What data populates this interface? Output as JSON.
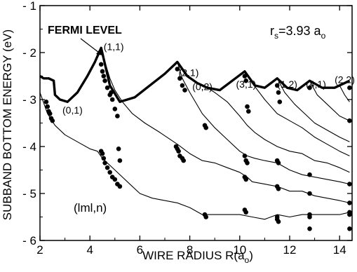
{
  "chart_data": {
    "type": "line",
    "xlabel": "WIRE RADIUS R(a",
    "xlabel_sub": "o",
    "xlabel_close": ")",
    "ylabel": "SUBBAND BOTTOM ENERGY (eV)",
    "xlim": [
      2,
      14.5
    ],
    "ylim": [
      -6,
      -1
    ],
    "x_ticks": [
      2,
      4,
      6,
      8,
      10,
      12,
      14
    ],
    "x_tick_labels": [
      "2",
      "4",
      "6",
      "8",
      "10",
      "12",
      "14"
    ],
    "y_ticks": [
      -1,
      -2,
      -3,
      -4,
      -5,
      -6
    ],
    "y_tick_labels": [
      "- 1",
      "- 2",
      "- 3",
      "- 4",
      "- 5",
      "- 6"
    ],
    "grid": false,
    "fermi_label": "FERMI LEVEL",
    "rs_label": {
      "main": "r",
      "sub1": "s",
      "mid": "=3.93 a",
      "sub2": "o"
    },
    "legend_note": "(lml,n)",
    "subband_labels": [
      {
        "text": "(0,1)",
        "x": 2.9,
        "y": -3.3
      },
      {
        "text": "(1,1)",
        "x": 4.55,
        "y": -1.95
      },
      {
        "text": "(2,1)",
        "x": 7.55,
        "y": -2.5
      },
      {
        "text": "(0,2)",
        "x": 8.1,
        "y": -2.8
      },
      {
        "text": "(3,1)",
        "x": 9.85,
        "y": -2.75
      },
      {
        "text": "(1,2)",
        "x": 11.5,
        "y": -2.75
      },
      {
        "text": "(4,1)",
        "x": 12.65,
        "y": -2.75
      },
      {
        "text": "(2,2)",
        "x": 13.8,
        "y": -2.65
      }
    ],
    "series": [
      {
        "name": "Fermi level",
        "style": "thick",
        "x": [
          2.0,
          2.15,
          2.35,
          2.55,
          2.6,
          2.8,
          3.1,
          3.5,
          3.9,
          4.2,
          4.45,
          4.8,
          5.2,
          5.8,
          6.4,
          7.0,
          7.5,
          7.9,
          8.3,
          8.7,
          9.2,
          9.7,
          10.2,
          10.6,
          11.0,
          11.5,
          11.9,
          12.3,
          12.8,
          13.3,
          13.8,
          14.4
        ],
        "y": [
          -2.5,
          -2.55,
          -2.55,
          -2.6,
          -2.9,
          -3.0,
          -3.05,
          -2.85,
          -2.5,
          -2.2,
          -1.9,
          -2.7,
          -3.05,
          -2.95,
          -2.7,
          -2.45,
          -2.2,
          -2.5,
          -2.65,
          -2.75,
          -2.8,
          -2.6,
          -2.4,
          -2.7,
          -2.75,
          -2.55,
          -2.75,
          -2.8,
          -2.6,
          -2.75,
          -2.75,
          -2.6
        ]
      },
      {
        "name": "(0,1)",
        "style": "thin",
        "x": [
          2.0,
          2.3,
          2.6,
          3.0,
          3.5,
          4.0,
          4.3,
          4.5,
          5.0,
          5.5,
          6.0,
          6.5,
          7.0,
          7.5,
          8.0,
          8.5,
          9.0,
          9.5,
          10.0,
          10.5,
          11.0,
          11.5,
          12.0,
          12.5,
          13.0,
          13.5,
          14.0,
          14.4
        ],
        "y": [
          -2.85,
          -3.3,
          -3.55,
          -3.75,
          -3.9,
          -4.05,
          -4.1,
          -4.25,
          -4.5,
          -4.75,
          -5.0,
          -5.1,
          -5.15,
          -5.2,
          -5.3,
          -5.45,
          -5.45,
          -5.45,
          -5.45,
          -5.5,
          -5.55,
          -5.45,
          -5.5,
          -5.45,
          -5.45,
          -5.45,
          -5.45,
          -5.4
        ]
      },
      {
        "name": "(1,1)",
        "style": "thin",
        "x": [
          4.45,
          4.6,
          4.8,
          5.0,
          5.3,
          5.7,
          6.2,
          6.8,
          7.5,
          8.0,
          8.5,
          9.0,
          9.5,
          10.0,
          10.3,
          10.5,
          11.0,
          11.5,
          12.0,
          12.5,
          13.0,
          13.5,
          14.0,
          14.4
        ],
        "y": [
          -1.9,
          -2.2,
          -2.55,
          -2.8,
          -3.05,
          -3.3,
          -3.5,
          -3.7,
          -3.95,
          -4.15,
          -4.3,
          -4.35,
          -4.45,
          -4.55,
          -4.65,
          -4.75,
          -4.8,
          -4.85,
          -4.95,
          -4.95,
          -5.05,
          -5.1,
          -5.15,
          -5.2
        ]
      },
      {
        "name": "(2,1)",
        "style": "thin",
        "x": [
          7.5,
          7.7,
          8.0,
          8.5,
          9.0,
          9.5,
          10.0,
          10.3,
          10.6,
          11.0,
          11.5,
          12.0,
          12.5,
          13.0,
          13.5,
          14.0,
          14.4
        ],
        "y": [
          -2.2,
          -2.55,
          -2.85,
          -3.3,
          -3.6,
          -3.85,
          -4.1,
          -4.2,
          -4.25,
          -4.3,
          -4.35,
          -4.5,
          -4.6,
          -4.65,
          -4.7,
          -4.75,
          -4.8
        ]
      },
      {
        "name": "(0,2)",
        "style": "thin",
        "x": [
          8.7,
          9.0,
          9.5,
          10.0,
          10.3,
          10.6,
          11.0,
          11.5,
          12.0,
          12.5,
          13.0,
          13.5,
          14.0,
          14.4
        ],
        "y": [
          -2.75,
          -2.85,
          -3.05,
          -3.35,
          -3.55,
          -3.7,
          -3.85,
          -4.0,
          -4.1,
          -4.15,
          -4.3,
          -4.35,
          -4.45,
          -4.55
        ]
      },
      {
        "name": "(3,1)",
        "style": "thin",
        "x": [
          10.2,
          10.5,
          11.0,
          11.5,
          12.0,
          12.5,
          13.0,
          13.5,
          14.0,
          14.4
        ],
        "y": [
          -2.4,
          -2.65,
          -3.0,
          -3.3,
          -3.45,
          -3.6,
          -3.8,
          -3.95,
          -4.1,
          -4.2
        ]
      },
      {
        "name": "(1,2)",
        "style": "thin",
        "x": [
          11.5,
          11.8,
          12.2,
          12.6,
          13.0,
          13.5,
          14.0,
          14.4
        ],
        "y": [
          -2.55,
          -2.85,
          -3.1,
          -3.3,
          -3.5,
          -3.65,
          -3.8,
          -3.9
        ]
      },
      {
        "name": "(4,1)",
        "style": "thin",
        "x": [
          12.8,
          13.1,
          13.5,
          14.0,
          14.4
        ],
        "y": [
          -2.6,
          -2.9,
          -3.1,
          -3.35,
          -3.45
        ]
      },
      {
        "name": "(2,2)",
        "style": "thin",
        "x": [
          14.0,
          14.2,
          14.4
        ],
        "y": [
          -2.7,
          -2.9,
          -3.05
        ]
      }
    ],
    "dots": {
      "x": [
        2.25,
        2.3,
        2.35,
        2.4,
        2.45,
        2.5,
        4.4,
        4.45,
        4.5,
        4.55,
        4.6,
        4.7,
        4.8,
        4.85,
        4.9,
        5.0,
        5.1,
        5.15,
        5.2,
        7.5,
        7.6,
        7.7,
        7.8,
        8.6,
        8.65,
        10.2,
        10.25,
        10.3,
        10.35,
        11.5,
        11.55,
        11.6,
        12.8,
        14.4,
        4.45,
        4.5,
        4.55,
        4.6,
        4.7,
        4.8,
        4.9,
        5.0,
        5.1,
        5.2,
        7.45,
        7.5,
        7.55,
        7.6,
        7.7,
        7.75,
        10.2,
        10.25,
        10.3,
        11.5,
        11.55,
        12.8,
        14.4,
        8.6,
        8.65,
        10.2,
        10.25,
        11.5,
        11.55,
        12.8,
        14.4,
        10.2,
        10.25,
        11.5,
        12.8,
        14.4,
        11.5,
        11.55,
        12.8,
        14.4,
        12.8,
        14.4,
        14.4
      ],
      "y": [
        -3.05,
        -3.15,
        -3.25,
        -3.3,
        -3.4,
        -3.45,
        -2.0,
        -2.25,
        -2.4,
        -2.5,
        -2.6,
        -2.75,
        -2.9,
        -2.85,
        -3.0,
        -3.2,
        -3.35,
        -4.05,
        -4.3,
        -2.35,
        -2.55,
        -2.7,
        -2.8,
        -3.55,
        -3.6,
        -2.5,
        -2.6,
        -3.15,
        -3.25,
        -2.7,
        -2.85,
        -3.05,
        -2.75,
        -2.75,
        -4.1,
        -4.15,
        -4.25,
        -4.35,
        -4.45,
        -4.55,
        -4.65,
        -4.7,
        -4.8,
        -4.85,
        -4.0,
        -4.05,
        -4.1,
        -4.2,
        -4.25,
        -4.3,
        -4.2,
        -4.3,
        -4.35,
        -4.3,
        -4.35,
        -4.6,
        -4.8,
        -5.45,
        -5.5,
        -4.65,
        -4.7,
        -4.85,
        -4.9,
        -5.0,
        -5.2,
        -5.35,
        -5.4,
        -5.5,
        -5.5,
        -5.4,
        -5.55,
        -5.6,
        -5.45,
        -5.45,
        -5.75,
        -5.75,
        -3.45
      ]
    }
  }
}
